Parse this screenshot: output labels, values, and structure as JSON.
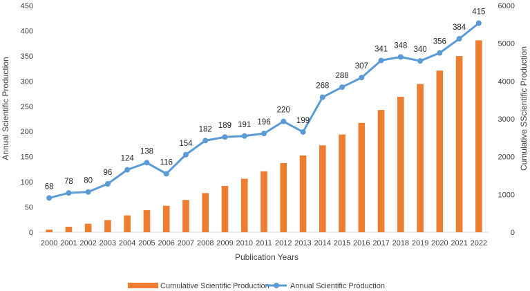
{
  "chart_data": {
    "type": "bar+line",
    "title": "",
    "xlabel": "Publication Years",
    "ylabel_left": "Annual Scientific Production",
    "ylabel_right": "Cumulative SScientific Production",
    "ylim_left": [
      0,
      450
    ],
    "ylim_right": [
      0,
      6000
    ],
    "yticks_left": [
      0,
      50,
      100,
      150,
      200,
      250,
      300,
      350,
      400,
      450
    ],
    "yticks_right": [
      0,
      1000,
      2000,
      3000,
      4000,
      5000,
      6000
    ],
    "grid": false,
    "legend_position": "bottom",
    "colors": {
      "bar": "#ED7D31",
      "line": "#5B9BD5",
      "axis": "#D9D9D9",
      "text": "#404040"
    },
    "categories": [
      "2000",
      "2001",
      "2002",
      "2003",
      "2004",
      "2005",
      "2006",
      "2007",
      "2008",
      "2009",
      "2010",
      "2011",
      "2012",
      "2013",
      "2014",
      "2015",
      "2016",
      "2017",
      "2018",
      "2019",
      "2020",
      "2021",
      "2022"
    ],
    "series": [
      {
        "name": "Cumulative Scientific Production",
        "type": "bar",
        "axis": "right",
        "values": [
          68,
          146,
          226,
          322,
          446,
          584,
          700,
          854,
          1036,
          1225,
          1416,
          1612,
          1832,
          2031,
          2299,
          2587,
          2894,
          3235,
          3583,
          3923,
          4279,
          4663,
          5078
        ]
      },
      {
        "name": "Annual Scientific Production",
        "type": "line",
        "axis": "left",
        "values": [
          68,
          78,
          80,
          96,
          124,
          138,
          116,
          154,
          182,
          189,
          191,
          196,
          220,
          199,
          268,
          288,
          307,
          341,
          348,
          340,
          356,
          384,
          415
        ],
        "data_labels": [
          "68",
          "78",
          "80",
          "96",
          "124",
          "138",
          "116",
          "154",
          "182",
          "189",
          "191",
          "196",
          "220",
          "199",
          "268",
          "288",
          "307",
          "341",
          "348",
          "340",
          "356",
          "384",
          "415"
        ]
      }
    ]
  }
}
